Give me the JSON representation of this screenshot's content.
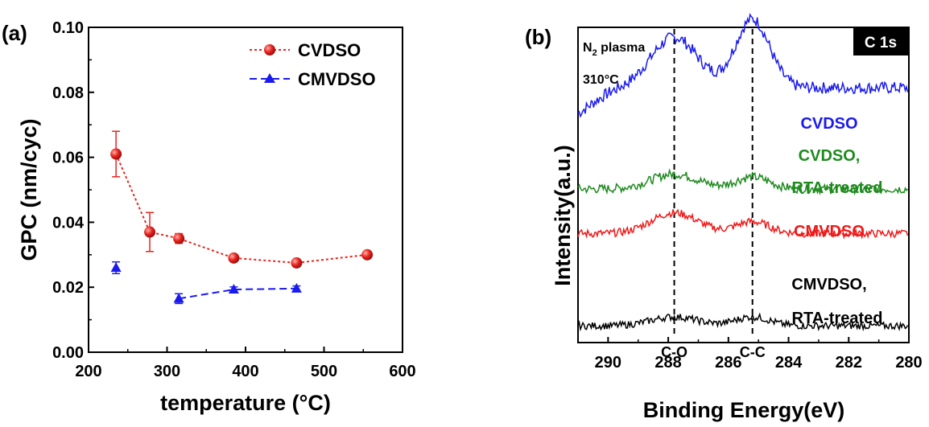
{
  "chart_data": [
    {
      "panel": "(a)",
      "type": "scatter",
      "xlabel": "temperature (°C)",
      "ylabel": "GPC (nm/cyc)",
      "xlim": [
        200,
        600
      ],
      "ylim": [
        0.0,
        0.1
      ],
      "x_ticks": [
        "200",
        "300",
        "400",
        "500",
        "600"
      ],
      "y_ticks": [
        "0.00",
        "0.02",
        "0.04",
        "0.06",
        "0.08",
        "0.10"
      ],
      "legend_position": "top-right",
      "series": [
        {
          "name": "CVDSO",
          "color": "#e8231e",
          "marker": "sphere",
          "line": "dotted",
          "x": [
            235,
            278,
            315,
            385,
            465,
            555
          ],
          "y": [
            0.061,
            0.037,
            0.035,
            0.029,
            0.0275,
            0.03
          ],
          "err": [
            0.007,
            0.006,
            0.0015,
            0.001,
            0.001,
            0.001
          ]
        },
        {
          "name": "CMVDSO",
          "color": "#1a1aee",
          "marker": "triangle",
          "line": "dashed",
          "x": [
            235,
            315,
            385,
            465
          ],
          "y": [
            0.026,
            0.0165,
            0.0193,
            0.0196
          ],
          "err": [
            0.0018,
            0.0015,
            0.0008,
            0.0008
          ],
          "line_from_index": 1
        }
      ]
    },
    {
      "panel": "(b)",
      "type": "line",
      "xlabel": "Binding Energy(eV)",
      "ylabel": "Intensity(a.u.)",
      "xlim": [
        291,
        280
      ],
      "x_ticks": [
        "290",
        "288",
        "286",
        "284",
        "282",
        "280"
      ],
      "badge": "C 1s",
      "annotation_gas": "N",
      "annotation_gas_sub": "2",
      "annotation_gas_rest": " plasma",
      "annotation_temp": "310°C",
      "peak_lines": [
        {
          "x": 287.8,
          "label": "C-O"
        },
        {
          "x": 285.2,
          "label": "C-C"
        }
      ],
      "series": [
        {
          "name": "CVDSO",
          "name_line2": "",
          "color": "#1a1aee",
          "baseline": 0.84,
          "peaks": [
            0.17,
            0.23
          ],
          "noise": 0.02
        },
        {
          "name": "CVDSO,",
          "name_line2": "RTA-treated",
          "color": "#1e8a1e",
          "baseline": 0.5,
          "peaks": [
            0.05,
            0.04
          ],
          "noise": 0.015
        },
        {
          "name": "CMVDSO",
          "name_line2": "",
          "color": "#ee1a1a",
          "baseline": 0.35,
          "peaks": [
            0.07,
            0.04
          ],
          "noise": 0.013
        },
        {
          "name": "CMVDSO,",
          "name_line2": "RTA-treated",
          "color": "#000000",
          "baseline": 0.04,
          "peaks": [
            0.03,
            0.03
          ],
          "noise": 0.012
        }
      ]
    }
  ]
}
